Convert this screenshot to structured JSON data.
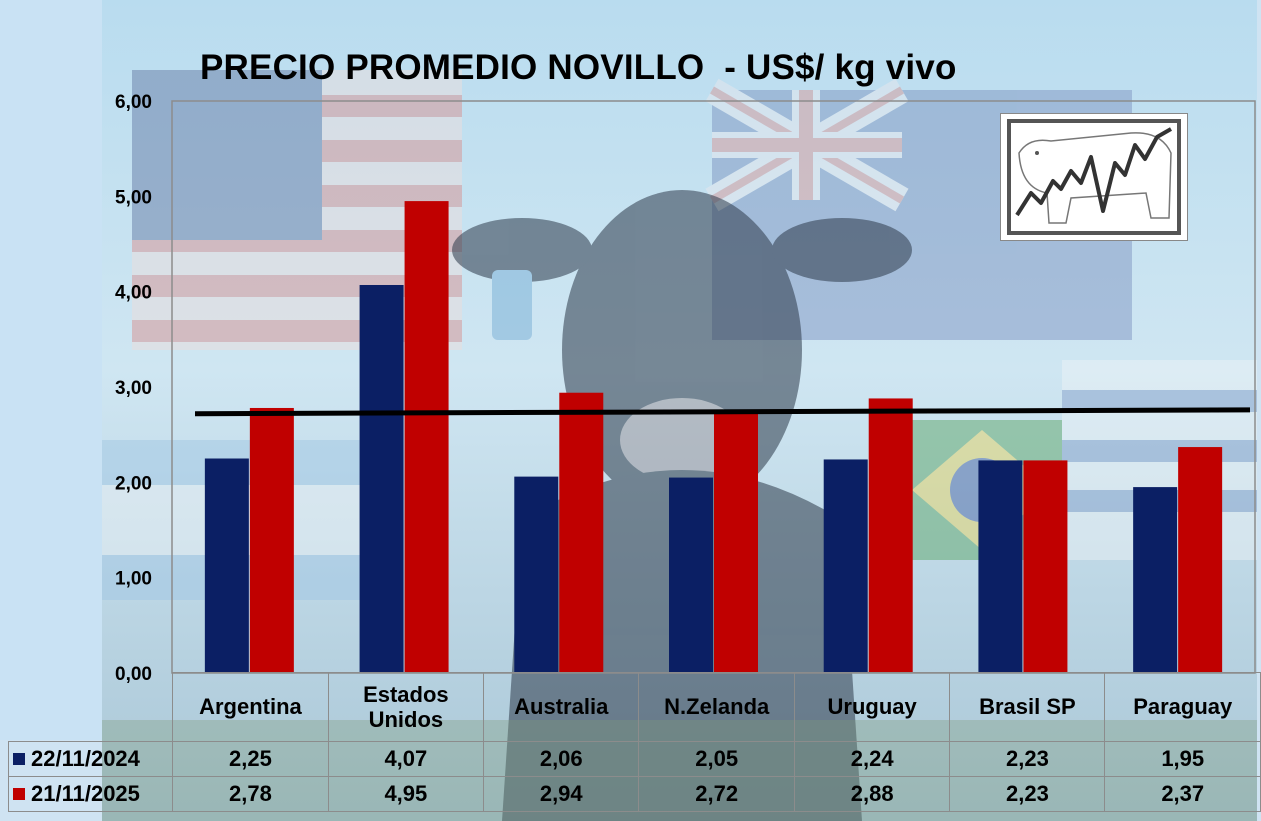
{
  "colors": {
    "series1": "#0b1f64",
    "series2": "#c00000",
    "reference_line": "#000000",
    "gridline": "#b0b0b0"
  },
  "background_image": "illustrated cow with flags of United States, Australia, New Zealand, Uruguay, Argentina, Brazil and United Kingdom under blue sky",
  "logo_icon": "cow-outline-with-rising-price-line-icon",
  "chart_data": {
    "type": "bar",
    "title": "PRECIO PROMEDIO NOVILLO  - US$/ kg vivo",
    "categories": [
      "Argentina",
      "Estados\nUnidos",
      "Australia",
      "N.Zelanda",
      "Uruguay",
      "Brasil SP",
      "Paraguay"
    ],
    "series": [
      {
        "name": "22/11/2024",
        "values": [
          2.25,
          4.07,
          2.06,
          2.05,
          2.24,
          2.23,
          1.95
        ],
        "labels": [
          "2,25",
          "4,07",
          "2,06",
          "2,05",
          "2,24",
          "2,23",
          "1,95"
        ]
      },
      {
        "name": "21/11/2025",
        "values": [
          2.78,
          4.95,
          2.94,
          2.72,
          2.88,
          2.23,
          2.37
        ],
        "labels": [
          "2,78",
          "4,95",
          "2,94",
          "2,72",
          "2,88",
          "2,23",
          "2,37"
        ]
      }
    ],
    "ylim": [
      0,
      6
    ],
    "yticks": [
      "0,00",
      "1,00",
      "2,00",
      "3,00",
      "4,00",
      "5,00",
      "6,00"
    ],
    "reference_line": {
      "from": 2.72,
      "to": 2.76
    },
    "legend": "data-table",
    "grid": false
  }
}
